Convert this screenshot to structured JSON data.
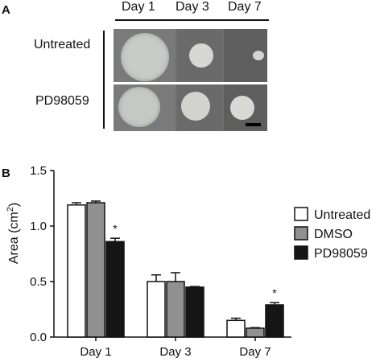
{
  "panel_a": {
    "letter": "A",
    "day_headers": [
      "Day 1",
      "Day 3",
      "Day 7"
    ],
    "row_labels": [
      "Untreated",
      "PD98059"
    ],
    "colors": {
      "photo_bg": "#6f6f6f",
      "disc": "#cfcfcf",
      "divider": "#ffffff"
    }
  },
  "panel_b": {
    "letter": "B"
  },
  "chart_data": {
    "type": "bar",
    "categories": [
      "Day 1",
      "Day 3",
      "Day 7"
    ],
    "series": [
      {
        "name": "Untreated",
        "values": [
          1.19,
          0.5,
          0.15
        ],
        "errors": [
          0.02,
          0.06,
          0.02
        ],
        "color": "#ffffff"
      },
      {
        "name": "DMSO",
        "values": [
          1.21,
          0.5,
          0.08
        ],
        "errors": [
          0.015,
          0.08,
          0.005
        ],
        "color": "#909090"
      },
      {
        "name": "PD98059",
        "values": [
          0.86,
          0.45,
          0.29
        ],
        "errors": [
          0.03,
          0.005,
          0.02
        ],
        "color": "#151515"
      }
    ],
    "significance": [
      {
        "category": "Day 1",
        "series": "PD98059",
        "label": "*"
      },
      {
        "category": "Day 7",
        "series": "PD98059",
        "label": "*"
      }
    ],
    "ylabel_main": "Area (cm",
    "ylabel_sup": "2",
    "ylabel_end": ")",
    "ylim": [
      0,
      1.5
    ],
    "yticks": [
      "0.0",
      "0.5",
      "1.0",
      "1.5"
    ],
    "yticks_values": [
      0,
      0.5,
      1.0,
      1.5
    ],
    "legend_position": "right",
    "grid": false
  }
}
